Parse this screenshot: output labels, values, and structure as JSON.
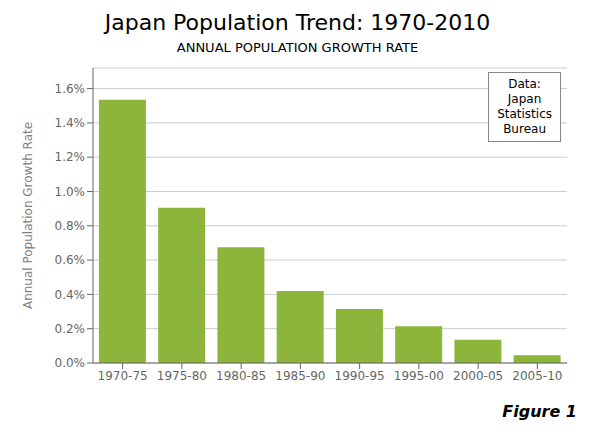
{
  "chart_data": {
    "type": "bar",
    "title": "Japan Population Trend: 1970-2010",
    "subtitle": "ANNUAL POPULATION GROWTH RATE",
    "ylabel": "Annual Population Growth Rate",
    "annotations": [
      "Data:\nJapan\nStatistics\nBureau",
      "Figure 1"
    ],
    "categories": [
      "1970-75",
      "1975-80",
      "1980-85",
      "1985-90",
      "1990-95",
      "1995-00",
      "2000-05",
      "2005-10"
    ],
    "values": [
      1.535,
      0.905,
      0.675,
      0.42,
      0.315,
      0.215,
      0.135,
      0.045
    ],
    "color": "#8db53b",
    "ylim": [
      0,
      1.72
    ],
    "yticks": [
      {
        "value": 0.0,
        "label": "0.0%"
      },
      {
        "value": 0.2,
        "label": "0.2%"
      },
      {
        "value": 0.4,
        "label": "0.4%"
      },
      {
        "value": 0.6,
        "label": "0.6%"
      },
      {
        "value": 0.8,
        "label": "0.8%"
      },
      {
        "value": 1.0,
        "label": "1.0%"
      },
      {
        "value": 1.2,
        "label": "1.2%"
      },
      {
        "value": 1.4,
        "label": "1.4%"
      },
      {
        "value": 1.6,
        "label": "1.6%"
      }
    ],
    "grid": true
  }
}
